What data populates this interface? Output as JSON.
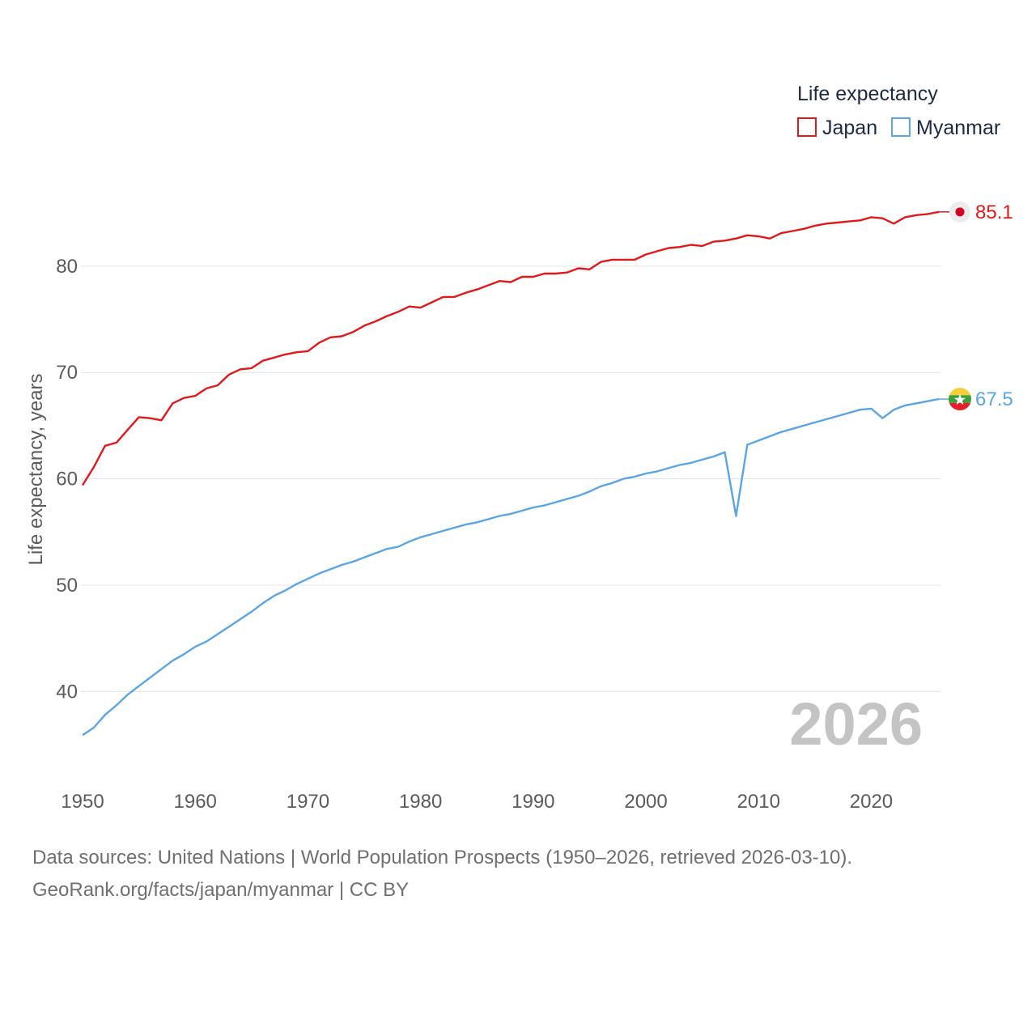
{
  "chart_data": {
    "type": "line",
    "title": "",
    "xlabel": "",
    "ylabel": "Life expectancy, years",
    "xlim": [
      1950,
      2026
    ],
    "ylim": [
      35,
      86
    ],
    "x_ticks": [
      1950,
      1960,
      1970,
      1980,
      1990,
      2000,
      2010,
      2020
    ],
    "y_ticks": [
      40,
      50,
      60,
      70,
      80
    ],
    "grid": true,
    "legend": {
      "title": "Life expectancy",
      "position": "top-right"
    },
    "year_overlay": "2026",
    "x": [
      1950,
      1951,
      1952,
      1953,
      1954,
      1955,
      1956,
      1957,
      1958,
      1959,
      1960,
      1961,
      1962,
      1963,
      1964,
      1965,
      1966,
      1967,
      1968,
      1969,
      1970,
      1971,
      1972,
      1973,
      1974,
      1975,
      1976,
      1977,
      1978,
      1979,
      1980,
      1981,
      1982,
      1983,
      1984,
      1985,
      1986,
      1987,
      1988,
      1989,
      1990,
      1991,
      1992,
      1993,
      1994,
      1995,
      1996,
      1997,
      1998,
      1999,
      2000,
      2001,
      2002,
      2003,
      2004,
      2005,
      2006,
      2007,
      2008,
      2009,
      2010,
      2011,
      2012,
      2013,
      2014,
      2015,
      2016,
      2017,
      2018,
      2019,
      2020,
      2021,
      2022,
      2023,
      2024,
      2025,
      2026
    ],
    "series": [
      {
        "name": "Japan",
        "color": "#e2181b",
        "end_label": "85.1",
        "end_icon": "japan-flag-icon",
        "values": [
          59.4,
          61.1,
          63.1,
          63.4,
          64.6,
          65.8,
          65.7,
          65.5,
          67.1,
          67.6,
          67.8,
          68.5,
          68.8,
          69.8,
          70.3,
          70.4,
          71.1,
          71.4,
          71.7,
          71.9,
          72.0,
          72.8,
          73.3,
          73.4,
          73.8,
          74.4,
          74.8,
          75.3,
          75.7,
          76.2,
          76.1,
          76.6,
          77.1,
          77.1,
          77.5,
          77.8,
          78.2,
          78.6,
          78.5,
          79.0,
          79.0,
          79.3,
          79.3,
          79.4,
          79.8,
          79.7,
          80.4,
          80.6,
          80.6,
          80.6,
          81.1,
          81.4,
          81.7,
          81.8,
          82.0,
          81.9,
          82.3,
          82.4,
          82.6,
          82.9,
          82.8,
          82.6,
          83.1,
          83.3,
          83.5,
          83.8,
          84.0,
          84.1,
          84.2,
          84.3,
          84.6,
          84.5,
          84.0,
          84.6,
          84.8,
          84.9,
          85.1
        ]
      },
      {
        "name": "Myanmar",
        "color": "#5aa5e6",
        "end_label": "67.5",
        "end_icon": "myanmar-flag-icon",
        "values": [
          35.9,
          36.6,
          37.8,
          38.7,
          39.7,
          40.5,
          41.3,
          42.1,
          42.9,
          43.5,
          44.2,
          44.7,
          45.4,
          46.1,
          46.8,
          47.5,
          48.3,
          49.0,
          49.5,
          50.1,
          50.6,
          51.1,
          51.5,
          51.9,
          52.2,
          52.6,
          53.0,
          53.4,
          53.6,
          54.1,
          54.5,
          54.8,
          55.1,
          55.4,
          55.7,
          55.9,
          56.2,
          56.5,
          56.7,
          57.0,
          57.3,
          57.5,
          57.8,
          58.1,
          58.4,
          58.8,
          59.3,
          59.6,
          60.0,
          60.2,
          60.5,
          60.7,
          61.0,
          61.3,
          61.5,
          61.8,
          62.1,
          62.5,
          56.5,
          63.2,
          63.6,
          64.0,
          64.4,
          64.7,
          65.0,
          65.3,
          65.6,
          65.9,
          66.2,
          66.5,
          66.6,
          65.7,
          66.5,
          66.9,
          67.1,
          67.3,
          67.5
        ]
      }
    ]
  },
  "footer": {
    "sources": "Data sources: United Nations | World Population Prospects (1950–2026, retrieved 2026-03-10).",
    "credit": "GeoRank.org/facts/japan/myanmar | CC BY"
  }
}
